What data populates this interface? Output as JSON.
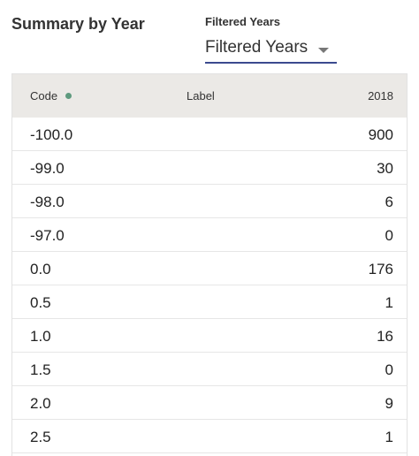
{
  "summary": {
    "title": "Summary by Year"
  },
  "filter": {
    "label": "Filtered Years",
    "selected": "Filtered Years"
  },
  "table": {
    "headers": {
      "code": "Code",
      "label": "Label",
      "year": "2018"
    },
    "rows": [
      {
        "code": "-100.0",
        "label": "",
        "value": "900"
      },
      {
        "code": "-99.0",
        "label": "",
        "value": "30"
      },
      {
        "code": "-98.0",
        "label": "",
        "value": "6"
      },
      {
        "code": "-97.0",
        "label": "",
        "value": "0"
      },
      {
        "code": "0.0",
        "label": "",
        "value": "176"
      },
      {
        "code": "0.5",
        "label": "",
        "value": "1"
      },
      {
        "code": "1.0",
        "label": "",
        "value": "16"
      },
      {
        "code": "1.5",
        "label": "",
        "value": "0"
      },
      {
        "code": "2.0",
        "label": "",
        "value": "9"
      },
      {
        "code": "2.5",
        "label": "",
        "value": "1"
      }
    ]
  },
  "colors": {
    "header_bg": "#ebe9e6",
    "dropdown_underline": "#3b4a8f",
    "status_dot": "#5e9a7e"
  }
}
